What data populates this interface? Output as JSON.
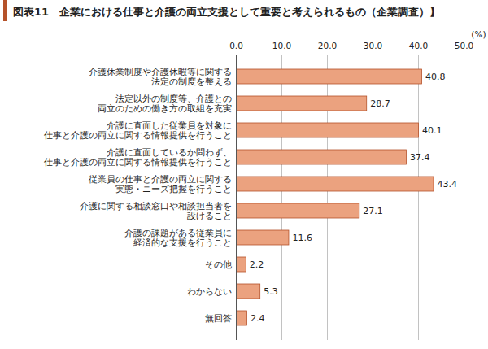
{
  "chart_data": {
    "type": "bar",
    "orientation": "horizontal",
    "title": "図表11　企業における仕事と介護の両立支援として重要と考えられるもの（企業調査）】",
    "x_label": "(%)",
    "categories": [
      "介護休業制度や介護休暇等に関する\n法定の制度を整える",
      "法定以外の制度等、介護との\n両立のための働き方の取組を充実",
      "介護に直面した従業員を対象に\n仕事と介護の両立に関する情報提供を行うこと",
      "介護に直面しているか問わず、\n仕事と介護の両立に関する情報提供を行うこと",
      "従業員の仕事と介護の両立に関する\n実態・ニーズ把握を行うこと",
      "介護に関する相談窓口や相談担当者を\n設けること",
      "介護の課題がある従業員に\n経済的な支援を行うこと",
      "その他",
      "わからない",
      "無回答"
    ],
    "values": [
      40.8,
      28.7,
      40.1,
      37.4,
      43.4,
      27.1,
      11.6,
      2.2,
      5.3,
      2.4
    ],
    "color": "#eba27f",
    "xlim": [
      0,
      50
    ],
    "xticks": [
      {
        "value": 0,
        "label": "0.0"
      },
      {
        "value": 10,
        "label": "10.0"
      },
      {
        "value": 20,
        "label": "20.0"
      },
      {
        "value": 30,
        "label": "30.0"
      },
      {
        "value": 40,
        "label": "40.0"
      },
      {
        "value": 50,
        "label": "50.0"
      }
    ],
    "grid": true,
    "data_labels": true
  }
}
